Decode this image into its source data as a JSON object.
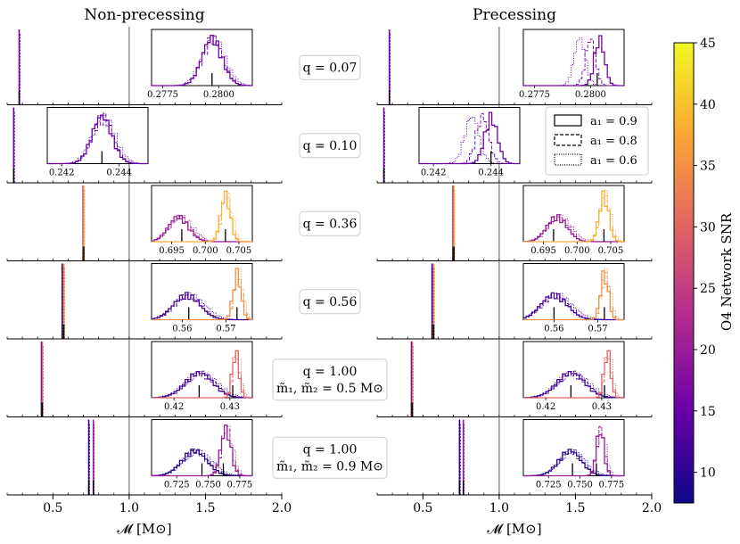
{
  "chart_data": {
    "type": "histogram-grid",
    "column_titles": [
      "Non-precessing",
      "Precessing"
    ],
    "xlabel": "𝓜 [M⊙]",
    "xlim": [
      0.2,
      2.0
    ],
    "xticks": [
      0.5,
      1.0,
      1.5,
      2.0
    ],
    "xtick_labels": [
      "0.5",
      "1.0",
      "1.5",
      "2.0"
    ],
    "reference_line_x": 1.0,
    "colorbar": {
      "label": "O4 Network SNR",
      "range": [
        7.5,
        45
      ],
      "ticks": [
        10,
        15,
        20,
        25,
        30,
        35,
        40,
        45
      ],
      "colormap": "plasma",
      "color_stops": [
        "#0d0887",
        "#6a00a8",
        "#b12a90",
        "#e16462",
        "#fca636",
        "#f0f921"
      ]
    },
    "legend": [
      {
        "label": "a₁ = 0.9",
        "style": "solid"
      },
      {
        "label": "a₁ = 0.8",
        "style": "dashed"
      },
      {
        "label": "a₁ = 0.6",
        "style": "dotted"
      }
    ],
    "rows": [
      {
        "label": [
          "q = 0.07"
        ],
        "main": {
          "np": [
            {
              "x": 0.279,
              "snr": 16
            }
          ],
          "p": [
            {
              "x": 0.28,
              "snr": 16
            }
          ]
        },
        "inset": {
          "xlim": [
            0.277,
            0.2815
          ],
          "ticks": [
            0.2775,
            0.28
          ],
          "tick_labels": [
            "0.2775",
            "0.2800"
          ],
          "np": [
            {
              "mu": 0.2797,
              "sd": 0.00045,
              "snr": 16,
              "shift": 3e-05,
              "truth": 0.2797
            }
          ],
          "p": [
            {
              "mu": 0.2804,
              "sd": 0.00022,
              "snr": 16,
              "shift": -0.0004,
              "truth": 0.2803
            }
          ]
        }
      },
      {
        "label": [
          "q = 0.10"
        ],
        "main": {
          "np": [
            {
              "x": 0.243,
              "snr": 15
            }
          ],
          "p": [
            {
              "x": 0.244,
              "snr": 15
            }
          ]
        },
        "inset": {
          "xlim": [
            0.2415,
            0.245
          ],
          "ticks": [
            0.242,
            0.244
          ],
          "tick_labels": [
            "0.242",
            "0.244"
          ],
          "np": [
            {
              "mu": 0.2434,
              "sd": 0.00035,
              "snr": 15,
              "shift": 3e-05,
              "truth": 0.2434
            }
          ],
          "p": [
            {
              "mu": 0.244,
              "sd": 0.00022,
              "snr": 15,
              "shift": -0.0003,
              "truth": 0.244
            }
          ]
        }
      },
      {
        "label": [
          "q = 0.36"
        ],
        "main": {
          "np": [
            {
              "x": 0.698,
              "snr": 20
            },
            {
              "x": 0.703,
              "snr": 38
            }
          ],
          "p": [
            {
              "x": 0.697,
              "snr": 20
            },
            {
              "x": 0.704,
              "snr": 38
            }
          ]
        },
        "inset": {
          "xlim": [
            0.692,
            0.707
          ],
          "ticks": [
            0.695,
            0.7,
            0.705
          ],
          "tick_labels": [
            "0.695",
            "0.700",
            "0.705"
          ],
          "np": [
            {
              "mu": 0.696,
              "sd": 0.0015,
              "snr": 20,
              "shift": 0.0002,
              "truth": 0.6965
            },
            {
              "mu": 0.703,
              "sd": 0.0007,
              "snr": 38,
              "shift": 0.0001,
              "truth": 0.703
            }
          ],
          "p": [
            {
              "mu": 0.697,
              "sd": 0.0015,
              "snr": 20,
              "shift": 0.0002,
              "truth": 0.6965
            },
            {
              "mu": 0.704,
              "sd": 0.0007,
              "snr": 38,
              "shift": 0.0001,
              "truth": 0.704
            }
          ]
        }
      },
      {
        "label": [
          "q = 0.56"
        ],
        "main": {
          "np": [
            {
              "x": 0.561,
              "snr": 12
            },
            {
              "x": 0.572,
              "snr": 35
            }
          ],
          "p": [
            {
              "x": 0.56,
              "snr": 12
            },
            {
              "x": 0.571,
              "snr": 35
            }
          ]
        },
        "inset": {
          "xlim": [
            0.553,
            0.576
          ],
          "ticks": [
            0.56,
            0.57
          ],
          "tick_labels": [
            "0.56",
            "0.57"
          ],
          "np": [
            {
              "mu": 0.561,
              "sd": 0.003,
              "snr": 12,
              "shift": 0.0003,
              "truth": 0.5615
            },
            {
              "mu": 0.5725,
              "sd": 0.0009,
              "snr": 35,
              "shift": 0.0002,
              "truth": 0.5725
            }
          ],
          "p": [
            {
              "mu": 0.56,
              "sd": 0.003,
              "snr": 12,
              "shift": 0.0003,
              "truth": 0.56
            },
            {
              "mu": 0.5715,
              "sd": 0.0009,
              "snr": 35,
              "shift": 0.0002,
              "truth": 0.5715
            }
          ]
        }
      },
      {
        "label": [
          "q = 1.00",
          "m̃₁, m̃₂ = 0.5 M⊙"
        ],
        "main": {
          "np": [
            {
              "x": 0.425,
              "snr": 12
            },
            {
              "x": 0.431,
              "snr": 30
            }
          ],
          "p": [
            {
              "x": 0.425,
              "snr": 12
            },
            {
              "x": 0.431,
              "snr": 30
            }
          ]
        },
        "inset": {
          "xlim": [
            0.416,
            0.434
          ],
          "ticks": [
            0.42,
            0.43
          ],
          "tick_labels": [
            "0.42",
            "0.43"
          ],
          "np": [
            {
              "mu": 0.4245,
              "sd": 0.0025,
              "snr": 12,
              "shift": 0.0002,
              "truth": 0.4245
            },
            {
              "mu": 0.431,
              "sd": 0.0006,
              "snr": 30,
              "shift": 0.0001,
              "truth": 0.4305
            }
          ],
          "p": [
            {
              "mu": 0.4245,
              "sd": 0.0025,
              "snr": 12,
              "shift": 0.0002,
              "truth": 0.4245
            },
            {
              "mu": 0.431,
              "sd": 0.0006,
              "snr": 30,
              "shift": 0.0001,
              "truth": 0.4305
            }
          ]
        }
      },
      {
        "label": [
          "q = 1.00",
          "m̃₁, m̃₂ = 0.9 M⊙"
        ],
        "main": {
          "np": [
            {
              "x": 0.735,
              "snr": 10
            },
            {
              "x": 0.765,
              "snr": 20
            }
          ],
          "p": [
            {
              "x": 0.74,
              "snr": 10
            },
            {
              "x": 0.765,
              "snr": 20
            }
          ]
        },
        "inset": {
          "xlim": [
            0.705,
            0.785
          ],
          "ticks": [
            0.725,
            0.75,
            0.775
          ],
          "tick_labels": [
            "0.725",
            "0.750",
            "0.775"
          ],
          "np": [
            {
              "mu": 0.739,
              "sd": 0.01,
              "snr": 10,
              "shift": 0.001,
              "truth": 0.745
            },
            {
              "mu": 0.764,
              "sd": 0.004,
              "snr": 20,
              "shift": 0.0005,
              "truth": 0.762
            }
          ],
          "p": [
            {
              "mu": 0.742,
              "sd": 0.009,
              "snr": 10,
              "shift": 0.001,
              "truth": 0.744
            },
            {
              "mu": 0.766,
              "sd": 0.003,
              "snr": 20,
              "shift": 0.0005,
              "truth": 0.763
            }
          ]
        }
      }
    ]
  }
}
